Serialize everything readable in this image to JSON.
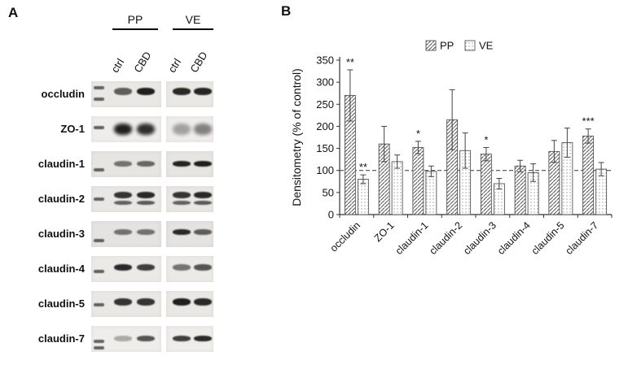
{
  "panelA": {
    "label": "A",
    "groups": [
      {
        "label": "PP"
      },
      {
        "label": "VE"
      }
    ],
    "lane_labels": [
      "ctrl",
      "CBD",
      "ctrl",
      "CBD"
    ],
    "rows": [
      {
        "label": "occludin",
        "lanes": [
          0.65,
          0.95,
          0.9,
          0.92
        ],
        "markers": [
          0.25,
          0.7
        ],
        "band_h": 9,
        "band_y": 0.42,
        "bg": "#eae8e5",
        "double": false
      },
      {
        "label": "ZO-1",
        "lanes": [
          0.95,
          0.88,
          0.35,
          0.5
        ],
        "markers": [
          0.45
        ],
        "band_h": 14,
        "band_y": 0.5,
        "bg": "#efedeb",
        "double": false
      },
      {
        "label": "claudin-1",
        "lanes": [
          0.55,
          0.6,
          0.92,
          0.95
        ],
        "markers": [
          0.72
        ],
        "band_h": 7,
        "band_y": 0.5,
        "bg": "#e7e5e2",
        "double": false
      },
      {
        "label": "claudin-2",
        "lanes": [
          0.85,
          0.9,
          0.85,
          0.9
        ],
        "markers": [
          0.5
        ],
        "band_h": 8,
        "band_y": 0.35,
        "bg": "#e9e7e4",
        "double": true
      },
      {
        "label": "claudin-3",
        "lanes": [
          0.55,
          0.55,
          0.9,
          0.65
        ],
        "markers": [
          0.75
        ],
        "band_h": 7,
        "band_y": 0.45,
        "bg": "#e5e3e0",
        "double": false
      },
      {
        "label": "claudin-4",
        "lanes": [
          0.9,
          0.8,
          0.55,
          0.7
        ],
        "markers": [
          0.6
        ],
        "band_h": 8,
        "band_y": 0.45,
        "bg": "#eceae7",
        "double": false
      },
      {
        "label": "claudin-5",
        "lanes": [
          0.85,
          0.85,
          0.95,
          0.9
        ],
        "markers": [
          0.55
        ],
        "band_h": 9,
        "band_y": 0.45,
        "bg": "#eae8e5",
        "double": false
      },
      {
        "label": "claudin-7",
        "lanes": [
          0.3,
          0.7,
          0.8,
          0.9
        ],
        "markers": [
          0.6,
          0.85
        ],
        "band_h": 7,
        "band_y": 0.5,
        "bg": "#efede9",
        "double": false
      }
    ]
  },
  "panelB": {
    "label": "B"
  },
  "chart_data": {
    "type": "bar",
    "title": "",
    "xlabel": "",
    "ylabel": "Densitometry (% of control)",
    "ylim": [
      0,
      350
    ],
    "ytick_step": 50,
    "reference_line": 100,
    "grid": false,
    "legend_position": "top",
    "legend": [
      "PP",
      "VE"
    ],
    "categories": [
      "occludin",
      "ZO-1",
      "claudin-1",
      "claudin-2",
      "claudin-3",
      "claudin-4",
      "claudin-5",
      "claudin-7"
    ],
    "series": [
      {
        "name": "PP",
        "pattern": "hatch",
        "values": [
          270,
          160,
          152,
          215,
          137,
          110,
          143,
          178
        ],
        "errors": [
          58,
          40,
          14,
          68,
          15,
          13,
          25,
          16
        ],
        "sig": [
          "**",
          "",
          "*",
          "",
          "*",
          "",
          "",
          "***"
        ]
      },
      {
        "name": "VE",
        "pattern": "dots",
        "values": [
          80,
          120,
          98,
          145,
          70,
          95,
          163,
          103
        ],
        "errors": [
          10,
          15,
          12,
          40,
          12,
          20,
          33,
          15
        ],
        "sig": [
          "**",
          "",
          "",
          "",
          "",
          "",
          "",
          ""
        ]
      }
    ],
    "colors": {
      "bar_fill": "#ffffff",
      "hatch_line": "#555555",
      "dot": "#999999",
      "bar_stroke": "#555555",
      "error_bar": "#444444",
      "axis": "#333333"
    }
  }
}
